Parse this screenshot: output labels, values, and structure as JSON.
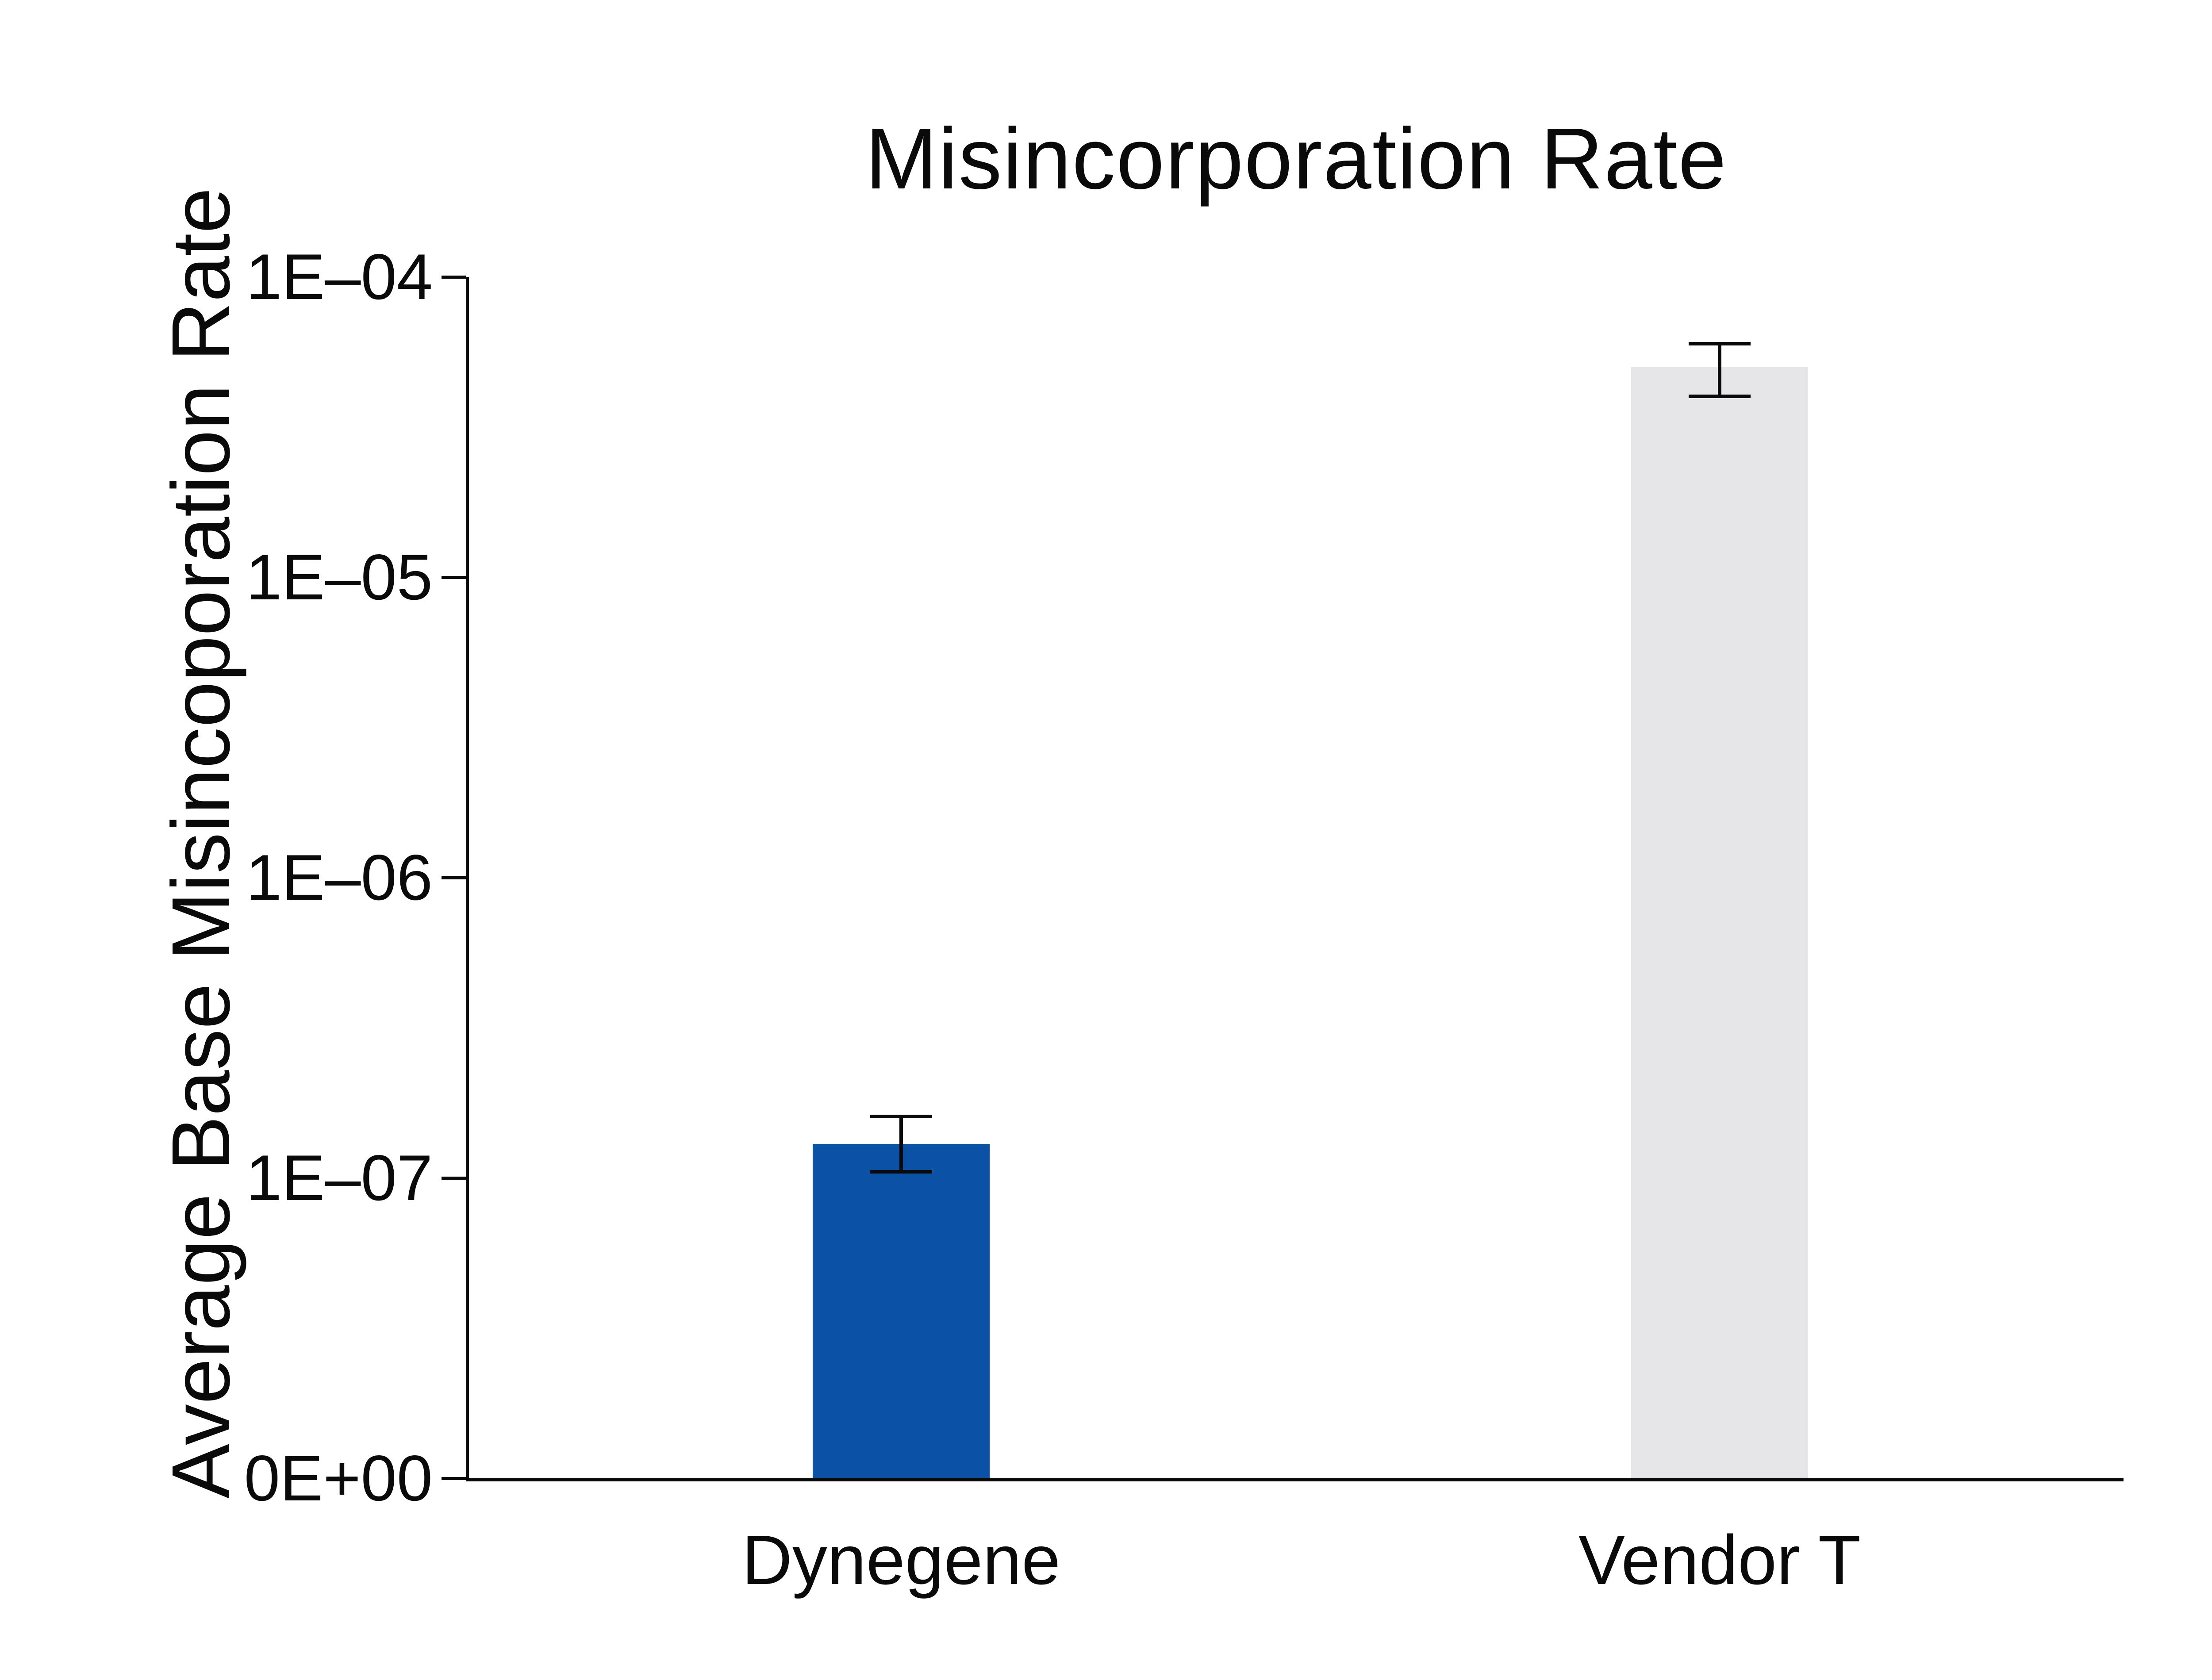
{
  "title": "Misincorporation Rate",
  "y_axis_label": "Average Base Misincoporation Rate",
  "colors": {
    "background": "#ffffff",
    "axis": "#0a0a0a",
    "text": "#0a0a0a",
    "dynegene_bar": "#0b51a5",
    "vendor_t_bar": "#e6e6e8",
    "error_bar": "#0a0a0a"
  },
  "chart_data": {
    "type": "bar",
    "title": "Misincorporation Rate",
    "xlabel": "",
    "ylabel": "Average Base Misincoporation Rate",
    "y_scale": "log",
    "grid": false,
    "legend": "none",
    "categories": [
      "Dynegene",
      "Vendor T"
    ],
    "values": [
      1.3e-07,
      5e-05
    ],
    "error_low": [
      1.05e-07,
      4e-05
    ],
    "error_high": [
      1.6e-07,
      6e-05
    ],
    "bar_colors": [
      "#0b51a5",
      "#e6e6e8"
    ],
    "y_ticks": [
      "1E–04",
      "1E–05",
      "1E–06",
      "1E–07",
      "0E+00"
    ],
    "y_tick_values": [
      0.0001,
      1e-05,
      1e-06,
      1e-07,
      0
    ],
    "ylim_top": 0.0001
  }
}
